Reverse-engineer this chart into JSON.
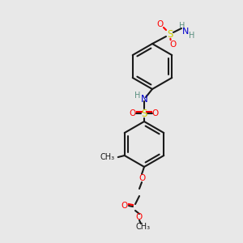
{
  "figsize": [
    3.0,
    3.0
  ],
  "dpi": 100,
  "bg_color": "#e8e8e8",
  "bond_color": "#1a1a1a",
  "colors": {
    "O": "#ff0000",
    "N": "#0000cc",
    "S": "#cccc00",
    "H": "#5a9080",
    "C": "#1a1a1a"
  },
  "lw": 1.5,
  "font_size": 7.5
}
